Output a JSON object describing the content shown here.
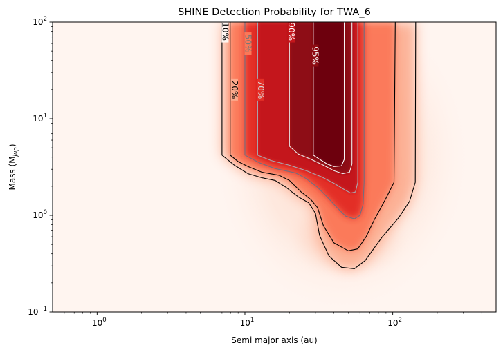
{
  "chart_data": {
    "type": "heatmap",
    "title": "SHINE Detection Probability for TWA_6",
    "xlabel": "Semi major axis (au)",
    "ylabel_prefix": "Mass (M",
    "ylabel_sub": "Jup",
    "ylabel_suffix": ")",
    "xscale": "log",
    "yscale": "log",
    "xlim": [
      0.5,
      500
    ],
    "ylim": [
      0.1,
      100
    ],
    "x_ticks": [
      {
        "value": 1,
        "base": "10",
        "exp": "0"
      },
      {
        "value": 10,
        "base": "10",
        "exp": "1"
      },
      {
        "value": 100,
        "base": "10",
        "exp": "2"
      }
    ],
    "y_ticks": [
      {
        "value": 0.1,
        "base": "10",
        "exp": "−1"
      },
      {
        "value": 1,
        "base": "10",
        "exp": "0"
      },
      {
        "value": 10,
        "base": "10",
        "exp": "1"
      },
      {
        "value": 100,
        "base": "10",
        "exp": "2"
      }
    ],
    "colormap": "Reds",
    "contours": [
      {
        "level": 10,
        "label": "10%",
        "color": "#000000",
        "label_color": "#000000",
        "label_at": [
          7.35,
          80
        ],
        "points": [
          [
            7.0,
            100
          ],
          [
            7.0,
            4.2
          ],
          [
            8.5,
            3.3
          ],
          [
            10.5,
            2.7
          ],
          [
            13,
            2.45
          ],
          [
            16,
            2.3
          ],
          [
            19,
            1.95
          ],
          [
            23,
            1.55
          ],
          [
            27,
            1.35
          ],
          [
            30,
            1.05
          ],
          [
            32,
            0.62
          ],
          [
            37,
            0.38
          ],
          [
            45,
            0.29
          ],
          [
            55,
            0.28
          ],
          [
            65,
            0.34
          ],
          [
            85,
            0.6
          ],
          [
            110,
            0.95
          ],
          [
            130,
            1.4
          ],
          [
            142,
            2.2
          ],
          [
            143,
            100
          ]
        ]
      },
      {
        "level": 20,
        "label": "20%",
        "color": "#000000",
        "label_color": "#000000",
        "label_at": [
          8.5,
          20
        ],
        "points": [
          [
            7.95,
            100
          ],
          [
            7.95,
            4.2
          ],
          [
            9,
            3.6
          ],
          [
            10.5,
            3.2
          ],
          [
            13,
            2.8
          ],
          [
            17,
            2.6
          ],
          [
            20,
            2.3
          ],
          [
            24,
            1.75
          ],
          [
            28,
            1.45
          ],
          [
            31,
            1.2
          ],
          [
            34,
            0.78
          ],
          [
            40,
            0.52
          ],
          [
            50,
            0.43
          ],
          [
            58,
            0.45
          ],
          [
            66,
            0.6
          ],
          [
            75,
            0.9
          ],
          [
            90,
            1.5
          ],
          [
            102,
            2.2
          ],
          [
            104,
            100
          ]
        ]
      },
      {
        "level": 50,
        "label": "50%",
        "color": "#6f6f80",
        "label_color": "#777777",
        "label_at": [
          10.5,
          60
        ],
        "points": [
          [
            10,
            100
          ],
          [
            10,
            4.2
          ],
          [
            12.5,
            3.5
          ],
          [
            16,
            3.05
          ],
          [
            22,
            2.75
          ],
          [
            26,
            2.4
          ],
          [
            31,
            1.95
          ],
          [
            36,
            1.55
          ],
          [
            42,
            1.2
          ],
          [
            48,
            0.98
          ],
          [
            55,
            0.92
          ],
          [
            60,
            1.0
          ],
          [
            63,
            1.3
          ],
          [
            64,
            2.2
          ],
          [
            64,
            100
          ]
        ]
      },
      {
        "level": 70,
        "label": "70%",
        "color": "#a8a8b0",
        "label_color": "#d8d8d8",
        "label_at": [
          12.8,
          20
        ],
        "points": [
          [
            12.2,
            100
          ],
          [
            12.2,
            4.2
          ],
          [
            15,
            3.7
          ],
          [
            20,
            3.3
          ],
          [
            26,
            2.9
          ],
          [
            33,
            2.5
          ],
          [
            40,
            2.15
          ],
          [
            47,
            1.85
          ],
          [
            52,
            1.7
          ],
          [
            56,
            1.75
          ],
          [
            58,
            2.2
          ],
          [
            58,
            100
          ]
        ]
      },
      {
        "level": 90,
        "label": "90%",
        "color": "#ececec",
        "label_color": "#ffffff",
        "label_at": [
          20.6,
          80
        ],
        "points": [
          [
            20,
            100
          ],
          [
            20,
            5.2
          ],
          [
            23,
            4.3
          ],
          [
            28,
            3.8
          ],
          [
            34,
            3.3
          ],
          [
            40,
            2.9
          ],
          [
            46,
            2.7
          ],
          [
            51,
            2.8
          ],
          [
            53,
            3.4
          ],
          [
            53,
            100
          ]
        ]
      },
      {
        "level": 95,
        "label": "95%",
        "color": "#ffffff",
        "label_color": "#ffffff",
        "label_at": [
          29.8,
          45
        ],
        "points": [
          [
            29,
            100
          ],
          [
            29,
            4.2
          ],
          [
            32,
            3.8
          ],
          [
            36,
            3.4
          ],
          [
            40,
            3.2
          ],
          [
            45,
            3.25
          ],
          [
            47,
            3.8
          ],
          [
            47,
            100
          ]
        ]
      }
    ]
  }
}
